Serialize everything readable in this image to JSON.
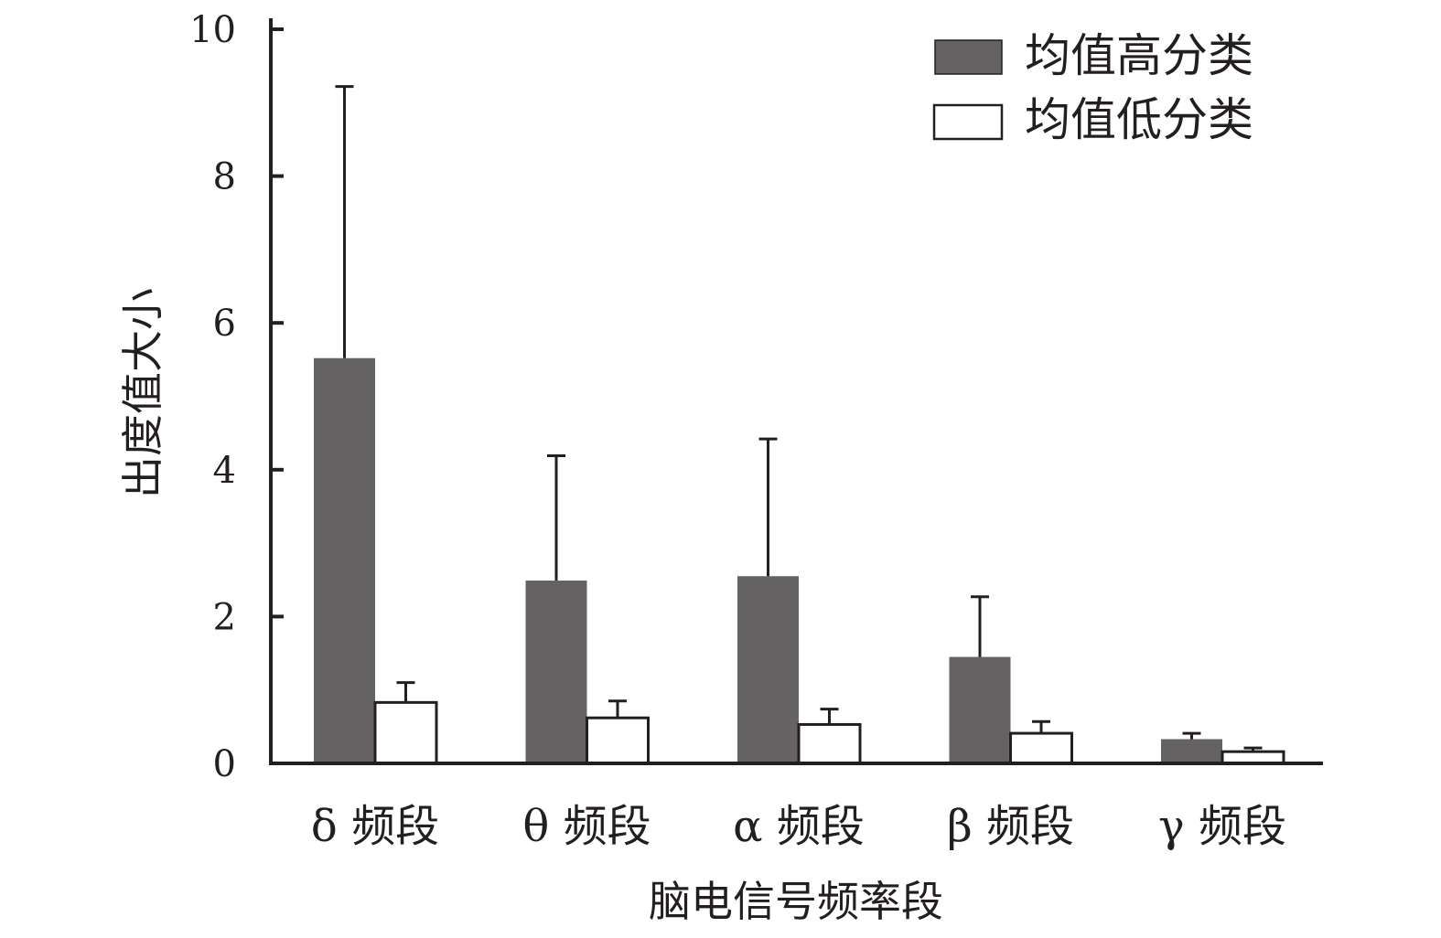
{
  "chart_data": {
    "type": "bar",
    "title": "",
    "xlabel": "脑电信号频率段",
    "ylabel": "出度值大小",
    "ylim": [
      0,
      10
    ],
    "yticks": [
      0,
      2,
      4,
      6,
      8,
      10
    ],
    "categories": [
      "δ 频段",
      "θ 频段",
      "α 频段",
      "β 频段",
      "γ 频段"
    ],
    "series": [
      {
        "name": "均值高分类",
        "color": "#646263",
        "values": [
          5.52,
          2.49,
          2.55,
          1.45,
          0.33
        ],
        "errors": [
          3.7,
          1.7,
          1.87,
          0.82,
          0.08
        ]
      },
      {
        "name": "均值低分类",
        "color": "#ffffff",
        "values": [
          0.83,
          0.62,
          0.53,
          0.41,
          0.16
        ],
        "errors": [
          0.27,
          0.23,
          0.21,
          0.16,
          0.05
        ]
      }
    ],
    "grid": false,
    "legend_position": "top-right",
    "error_bars": "upper only"
  }
}
